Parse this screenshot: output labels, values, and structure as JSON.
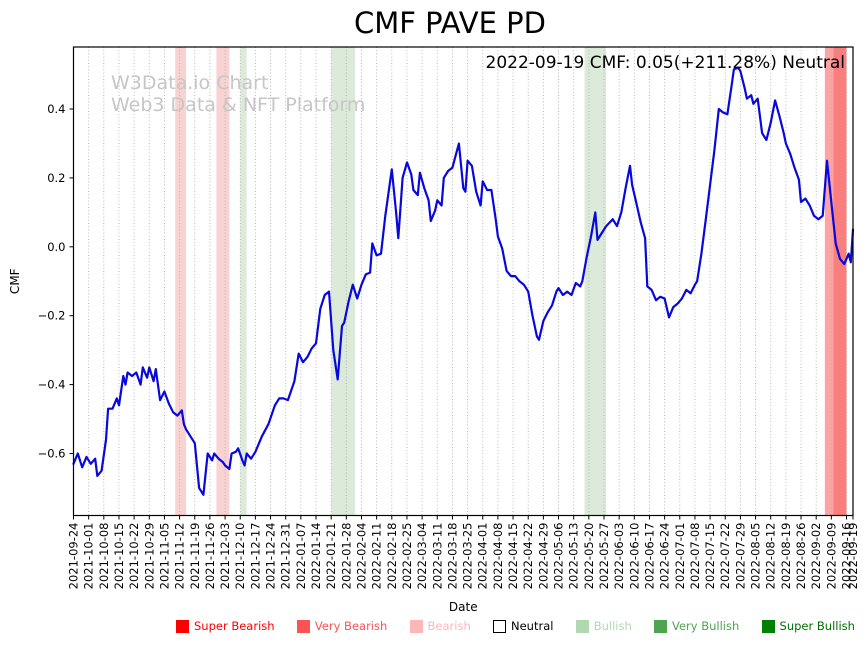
{
  "title": "CMF PAVE PD",
  "annotation": "2022-09-19 CMF: 0.05(+211.28%) Neutral",
  "watermark": {
    "line1": "W3Data.io Chart",
    "line2": "Web3 Data & NFT Platform"
  },
  "chart_data": {
    "type": "line",
    "title": "CMF PAVE PD",
    "xlabel": "Date",
    "ylabel": "CMF",
    "ylim": [
      -0.78,
      0.58
    ],
    "grid": "vertical-dotted",
    "grid_color": "#b0b0b0",
    "line_color": "#0808dc",
    "axis_color": "#000000",
    "yticks": [
      {
        "label": "0.4",
        "value": 0.4
      },
      {
        "label": "0.2",
        "value": 0.2
      },
      {
        "label": "0.0",
        "value": 0.0
      },
      {
        "label": "−0.2",
        "value": -0.2
      },
      {
        "label": "−0.4",
        "value": -0.4
      },
      {
        "label": "−0.6",
        "value": -0.6
      }
    ],
    "xticks": [
      "2021-09-24",
      "2021-10-01",
      "2021-10-08",
      "2021-10-15",
      "2021-10-22",
      "2021-10-29",
      "2021-11-05",
      "2021-11-12",
      "2021-11-19",
      "2021-11-26",
      "2021-12-03",
      "2021-12-10",
      "2021-12-17",
      "2021-12-24",
      "2021-12-31",
      "2022-01-07",
      "2022-01-14",
      "2022-01-21",
      "2022-01-28",
      "2022-02-04",
      "2022-02-11",
      "2022-02-18",
      "2022-02-25",
      "2022-03-04",
      "2022-03-11",
      "2022-03-18",
      "2022-03-25",
      "2022-04-01",
      "2022-04-08",
      "2022-04-15",
      "2022-04-22",
      "2022-04-29",
      "2022-05-06",
      "2022-05-13",
      "2022-05-20",
      "2022-05-27",
      "2022-06-03",
      "2022-06-10",
      "2022-06-17",
      "2022-06-24",
      "2022-07-01",
      "2022-07-08",
      "2022-07-15",
      "2022-07-22",
      "2022-07-29",
      "2022-08-05",
      "2022-08-12",
      "2022-08-19",
      "2022-08-26",
      "2022-09-02",
      "2022-09-09",
      "2022-09-16",
      "2022-09-19"
    ],
    "bands": [
      {
        "start": "2021-11-10",
        "end": "2021-11-15",
        "category": "Bearish",
        "fill": "#f9d2d2"
      },
      {
        "start": "2021-11-29",
        "end": "2021-12-05",
        "category": "Bearish",
        "fill": "#f9d2d2"
      },
      {
        "start": "2021-12-10",
        "end": "2021-12-13",
        "category": "Bullish",
        "fill": "#dcead9"
      },
      {
        "start": "2022-01-21",
        "end": "2022-02-01",
        "category": "Bullish",
        "fill": "#dcead9"
      },
      {
        "start": "2022-05-18",
        "end": "2022-05-28",
        "category": "Bullish",
        "fill": "#dcead9"
      },
      {
        "start": "2022-09-06",
        "end": "2022-09-10",
        "category": "Very Bearish",
        "fill": "#fca4a4"
      },
      {
        "start": "2022-09-10",
        "end": "2022-09-16",
        "category": "Very Bearish",
        "fill": "#f97e7e"
      }
    ],
    "series": [
      {
        "name": "CMF",
        "points": [
          [
            "2021-09-24",
            -0.63
          ],
          [
            "2021-09-26",
            -0.6
          ],
          [
            "2021-09-28",
            -0.64
          ],
          [
            "2021-09-30",
            -0.61
          ],
          [
            "2021-10-02",
            -0.63
          ],
          [
            "2021-10-04",
            -0.615
          ],
          [
            "2021-10-05",
            -0.665
          ],
          [
            "2021-10-07",
            -0.65
          ],
          [
            "2021-10-09",
            -0.56
          ],
          [
            "2021-10-10",
            -0.47
          ],
          [
            "2021-10-12",
            -0.47
          ],
          [
            "2021-10-14",
            -0.44
          ],
          [
            "2021-10-15",
            -0.46
          ],
          [
            "2021-10-17",
            -0.375
          ],
          [
            "2021-10-18",
            -0.4
          ],
          [
            "2021-10-19",
            -0.365
          ],
          [
            "2021-10-21",
            -0.375
          ],
          [
            "2021-10-23",
            -0.365
          ],
          [
            "2021-10-25",
            -0.4
          ],
          [
            "2021-10-26",
            -0.35
          ],
          [
            "2021-10-28",
            -0.38
          ],
          [
            "2021-10-29",
            -0.35
          ],
          [
            "2021-10-31",
            -0.39
          ],
          [
            "2021-11-01",
            -0.355
          ],
          [
            "2021-11-03",
            -0.445
          ],
          [
            "2021-11-05",
            -0.42
          ],
          [
            "2021-11-07",
            -0.455
          ],
          [
            "2021-11-09",
            -0.48
          ],
          [
            "2021-11-11",
            -0.49
          ],
          [
            "2021-11-13",
            -0.475
          ],
          [
            "2021-11-14",
            -0.515
          ],
          [
            "2021-11-15",
            -0.53
          ],
          [
            "2021-11-17",
            -0.55
          ],
          [
            "2021-11-19",
            -0.57
          ],
          [
            "2021-11-21",
            -0.7
          ],
          [
            "2021-11-23",
            -0.72
          ],
          [
            "2021-11-25",
            -0.6
          ],
          [
            "2021-11-27",
            -0.62
          ],
          [
            "2021-11-28",
            -0.6
          ],
          [
            "2021-11-30",
            -0.615
          ],
          [
            "2021-12-02",
            -0.625
          ],
          [
            "2021-12-03",
            -0.635
          ],
          [
            "2021-12-05",
            -0.645
          ],
          [
            "2021-12-06",
            -0.6
          ],
          [
            "2021-12-08",
            -0.595
          ],
          [
            "2021-12-09",
            -0.585
          ],
          [
            "2021-12-11",
            -0.62
          ],
          [
            "2021-12-12",
            -0.635
          ],
          [
            "2021-12-13",
            -0.6
          ],
          [
            "2021-12-15",
            -0.615
          ],
          [
            "2021-12-17",
            -0.595
          ],
          [
            "2021-12-20",
            -0.55
          ],
          [
            "2021-12-23",
            -0.515
          ],
          [
            "2021-12-26",
            -0.46
          ],
          [
            "2021-12-28",
            -0.44
          ],
          [
            "2021-12-30",
            -0.44
          ],
          [
            "2022-01-01",
            -0.445
          ],
          [
            "2022-01-04",
            -0.39
          ],
          [
            "2022-01-06",
            -0.31
          ],
          [
            "2022-01-08",
            -0.335
          ],
          [
            "2022-01-10",
            -0.32
          ],
          [
            "2022-01-12",
            -0.295
          ],
          [
            "2022-01-14",
            -0.28
          ],
          [
            "2022-01-16",
            -0.18
          ],
          [
            "2022-01-18",
            -0.14
          ],
          [
            "2022-01-20",
            -0.13
          ],
          [
            "2022-01-22",
            -0.3
          ],
          [
            "2022-01-24",
            -0.385
          ],
          [
            "2022-01-26",
            -0.23
          ],
          [
            "2022-01-27",
            -0.22
          ],
          [
            "2022-01-29",
            -0.16
          ],
          [
            "2022-01-31",
            -0.11
          ],
          [
            "2022-02-02",
            -0.15
          ],
          [
            "2022-02-04",
            -0.11
          ],
          [
            "2022-02-06",
            -0.08
          ],
          [
            "2022-02-08",
            -0.075
          ],
          [
            "2022-02-09",
            0.01
          ],
          [
            "2022-02-11",
            -0.025
          ],
          [
            "2022-02-13",
            -0.02
          ],
          [
            "2022-02-15",
            0.09
          ],
          [
            "2022-02-18",
            0.225
          ],
          [
            "2022-02-20",
            0.1
          ],
          [
            "2022-02-21",
            0.025
          ],
          [
            "2022-02-23",
            0.2
          ],
          [
            "2022-02-25",
            0.245
          ],
          [
            "2022-02-27",
            0.21
          ],
          [
            "2022-02-28",
            0.165
          ],
          [
            "2022-03-02",
            0.15
          ],
          [
            "2022-03-03",
            0.215
          ],
          [
            "2022-03-05",
            0.17
          ],
          [
            "2022-03-07",
            0.135
          ],
          [
            "2022-03-08",
            0.075
          ],
          [
            "2022-03-10",
            0.105
          ],
          [
            "2022-03-11",
            0.135
          ],
          [
            "2022-03-13",
            0.12
          ],
          [
            "2022-03-14",
            0.2
          ],
          [
            "2022-03-16",
            0.22
          ],
          [
            "2022-03-18",
            0.23
          ],
          [
            "2022-03-21",
            0.3
          ],
          [
            "2022-03-23",
            0.17
          ],
          [
            "2022-03-24",
            0.16
          ],
          [
            "2022-03-25",
            0.25
          ],
          [
            "2022-03-27",
            0.235
          ],
          [
            "2022-03-29",
            0.16
          ],
          [
            "2022-03-31",
            0.12
          ],
          [
            "2022-04-01",
            0.19
          ],
          [
            "2022-04-03",
            0.165
          ],
          [
            "2022-04-05",
            0.165
          ],
          [
            "2022-04-07",
            0.08
          ],
          [
            "2022-04-08",
            0.03
          ],
          [
            "2022-04-10",
            -0.005
          ],
          [
            "2022-04-12",
            -0.07
          ],
          [
            "2022-04-14",
            -0.085
          ],
          [
            "2022-04-16",
            -0.085
          ],
          [
            "2022-04-18",
            -0.1
          ],
          [
            "2022-04-20",
            -0.11
          ],
          [
            "2022-04-22",
            -0.13
          ],
          [
            "2022-04-24",
            -0.2
          ],
          [
            "2022-04-26",
            -0.26
          ],
          [
            "2022-04-27",
            -0.27
          ],
          [
            "2022-04-29",
            -0.215
          ],
          [
            "2022-05-01",
            -0.19
          ],
          [
            "2022-05-03",
            -0.17
          ],
          [
            "2022-05-05",
            -0.13
          ],
          [
            "2022-05-06",
            -0.12
          ],
          [
            "2022-05-08",
            -0.14
          ],
          [
            "2022-05-10",
            -0.13
          ],
          [
            "2022-05-12",
            -0.14
          ],
          [
            "2022-05-14",
            -0.105
          ],
          [
            "2022-05-16",
            -0.115
          ],
          [
            "2022-05-17",
            -0.1
          ],
          [
            "2022-05-19",
            -0.03
          ],
          [
            "2022-05-21",
            0.03
          ],
          [
            "2022-05-23",
            0.1
          ],
          [
            "2022-05-24",
            0.02
          ],
          [
            "2022-05-26",
            0.04
          ],
          [
            "2022-05-28",
            0.06
          ],
          [
            "2022-05-31",
            0.08
          ],
          [
            "2022-06-02",
            0.06
          ],
          [
            "2022-06-04",
            0.1
          ],
          [
            "2022-06-06",
            0.17
          ],
          [
            "2022-06-08",
            0.235
          ],
          [
            "2022-06-09",
            0.18
          ],
          [
            "2022-06-11",
            0.125
          ],
          [
            "2022-06-13",
            0.07
          ],
          [
            "2022-06-15",
            0.025
          ],
          [
            "2022-06-16",
            -0.115
          ],
          [
            "2022-06-18",
            -0.125
          ],
          [
            "2022-06-20",
            -0.155
          ],
          [
            "2022-06-22",
            -0.145
          ],
          [
            "2022-06-24",
            -0.15
          ],
          [
            "2022-06-26",
            -0.205
          ],
          [
            "2022-06-28",
            -0.175
          ],
          [
            "2022-06-30",
            -0.165
          ],
          [
            "2022-07-02",
            -0.15
          ],
          [
            "2022-07-04",
            -0.125
          ],
          [
            "2022-07-06",
            -0.135
          ],
          [
            "2022-07-08",
            -0.11
          ],
          [
            "2022-07-09",
            -0.1
          ],
          [
            "2022-07-11",
            -0.02
          ],
          [
            "2022-07-13",
            0.08
          ],
          [
            "2022-07-15",
            0.18
          ],
          [
            "2022-07-17",
            0.28
          ],
          [
            "2022-07-19",
            0.4
          ],
          [
            "2022-07-21",
            0.39
          ],
          [
            "2022-07-23",
            0.385
          ],
          [
            "2022-07-25",
            0.47
          ],
          [
            "2022-07-26",
            0.515
          ],
          [
            "2022-07-28",
            0.52
          ],
          [
            "2022-07-29",
            0.51
          ],
          [
            "2022-07-31",
            0.46
          ],
          [
            "2022-08-01",
            0.43
          ],
          [
            "2022-08-03",
            0.44
          ],
          [
            "2022-08-04",
            0.415
          ],
          [
            "2022-08-06",
            0.43
          ],
          [
            "2022-08-08",
            0.33
          ],
          [
            "2022-08-10",
            0.31
          ],
          [
            "2022-08-12",
            0.36
          ],
          [
            "2022-08-14",
            0.425
          ],
          [
            "2022-08-16",
            0.38
          ],
          [
            "2022-08-18",
            0.33
          ],
          [
            "2022-08-19",
            0.3
          ],
          [
            "2022-08-21",
            0.27
          ],
          [
            "2022-08-23",
            0.23
          ],
          [
            "2022-08-25",
            0.195
          ],
          [
            "2022-08-26",
            0.13
          ],
          [
            "2022-08-28",
            0.14
          ],
          [
            "2022-08-30",
            0.12
          ],
          [
            "2022-09-01",
            0.09
          ],
          [
            "2022-09-03",
            0.08
          ],
          [
            "2022-09-05",
            0.09
          ],
          [
            "2022-09-07",
            0.25
          ],
          [
            "2022-09-09",
            0.13
          ],
          [
            "2022-09-11",
            0.01
          ],
          [
            "2022-09-13",
            -0.035
          ],
          [
            "2022-09-15",
            -0.05
          ],
          [
            "2022-09-17",
            -0.02
          ],
          [
            "2022-09-18",
            -0.045
          ],
          [
            "2022-09-19",
            0.05
          ]
        ]
      }
    ],
    "legend_position": "bottom",
    "legend": [
      {
        "label": "Super Bearish",
        "swatch": "#ff0000",
        "text": "#ff0000",
        "outline": "#ff0000"
      },
      {
        "label": "Very Bearish",
        "swatch": "#ff5252",
        "text": "#ff5252",
        "outline": "#ff5252"
      },
      {
        "label": "Bearish",
        "swatch": "#ffb6b6",
        "text": "#ffb6b6",
        "outline": "#ffb6b6"
      },
      {
        "label": "Neutral",
        "swatch": "#ffffff",
        "text": "#000000",
        "outline": "#000000"
      },
      {
        "label": "Bullish",
        "swatch": "#b2d8b2",
        "text": "#b2d8b2",
        "outline": "#b2d8b2"
      },
      {
        "label": "Very Bullish",
        "swatch": "#4fa54f",
        "text": "#4fa54f",
        "outline": "#4fa54f"
      },
      {
        "label": "Super Bullish",
        "swatch": "#008000",
        "text": "#007000",
        "outline": "#008000"
      }
    ]
  }
}
